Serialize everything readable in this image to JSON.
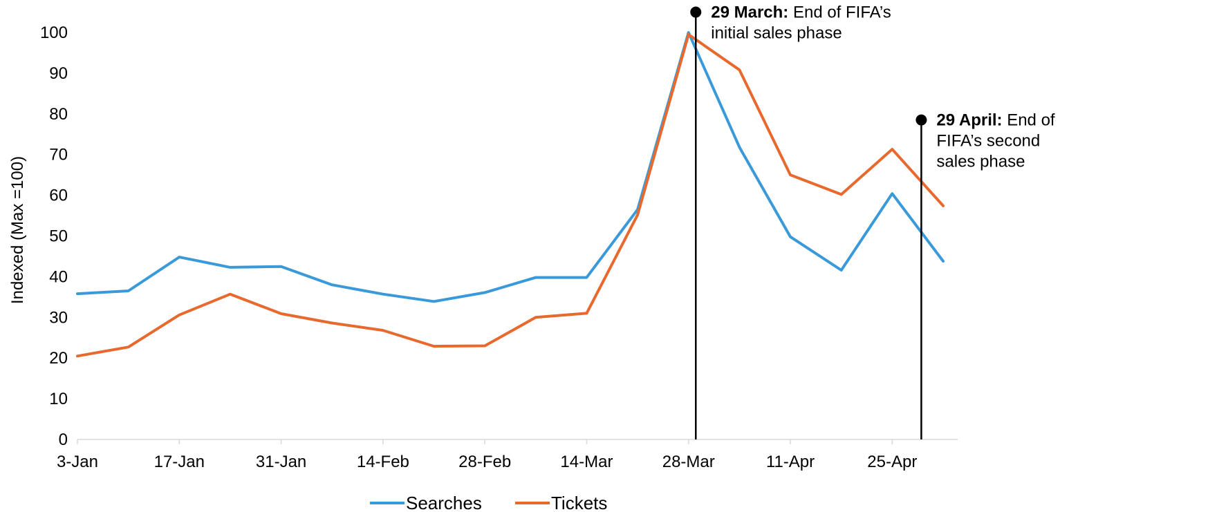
{
  "chart_data": {
    "type": "line",
    "ylabel": "Indexed (Max =100)",
    "ylim": [
      0,
      100
    ],
    "yticks": [
      "0",
      "10",
      "20",
      "30",
      "40",
      "50",
      "60",
      "70",
      "80",
      "90",
      "100"
    ],
    "x": [
      "2022-01-03",
      "2022-01-10",
      "2022-01-17",
      "2022-01-24",
      "2022-01-31",
      "2022-02-07",
      "2022-02-14",
      "2022-02-21",
      "2022-02-28",
      "2022-03-07",
      "2022-03-14",
      "2022-03-21",
      "2022-03-28",
      "2022-04-04",
      "2022-04-11",
      "2022-04-18",
      "2022-04-25",
      "2022-05-02"
    ],
    "xtick_labels": [
      "3-Jan",
      "17-Jan",
      "31-Jan",
      "14-Feb",
      "28-Feb",
      "14-Mar",
      "28-Mar",
      "11-Apr",
      "25-Apr"
    ],
    "series": [
      {
        "name": "Searches",
        "color": "#3a9ad9",
        "values": [
          35.8,
          36.5,
          44.8,
          42.3,
          42.5,
          38.0,
          35.7,
          33.9,
          36.1,
          39.8,
          39.8,
          56.5,
          100,
          71.8,
          49.8,
          41.6,
          60.4,
          43.8
        ]
      },
      {
        "name": "Tickets",
        "color": "#e8692e",
        "values": [
          20.5,
          22.7,
          30.6,
          35.7,
          30.9,
          28.6,
          26.8,
          22.9,
          23.0,
          30.0,
          31.0,
          55.2,
          99.5,
          90.8,
          65.0,
          60.2,
          71.3,
          57.4
        ]
      }
    ],
    "annotations": [
      {
        "date": "2022-03-29",
        "marker_value": 105,
        "bold": "29 March:",
        "lines": [
          " End of FIFA’s",
          "initial sales phase"
        ]
      },
      {
        "date": "2022-04-29",
        "marker_value": 78.5,
        "bold": "29 April:",
        "lines": [
          " End of",
          "FIFA’s second",
          "sales phase"
        ]
      }
    ],
    "legend_position": "bottom",
    "grid": false
  }
}
